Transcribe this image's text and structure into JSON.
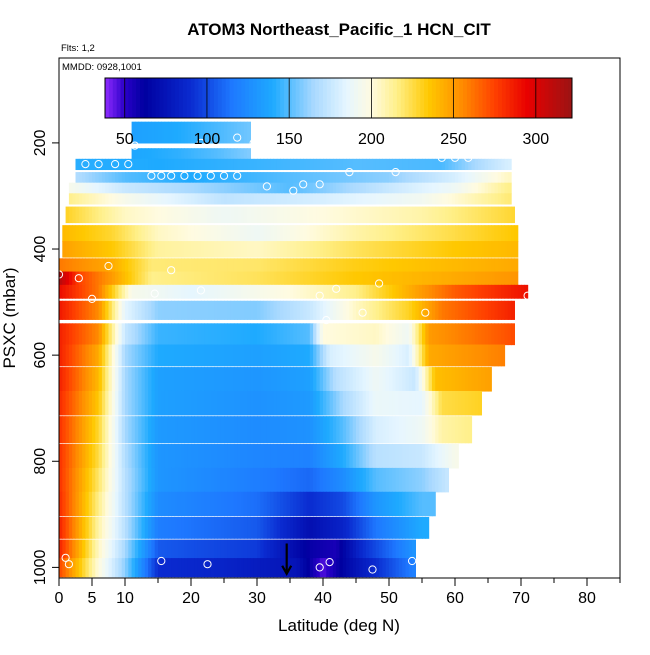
{
  "chart_data": {
    "type": "heatmap",
    "title": "ATOM3 Northeast_Pacific_1 HCN_CIT",
    "notes": [
      "Flts: 1,2",
      "MMDD: 0928,1001"
    ],
    "xlabel": "Latitude (deg N)",
    "ylabel": "PSXC (mbar)",
    "xlim": [
      0,
      85
    ],
    "ylim": [
      1020,
      40
    ],
    "y_reversed": true,
    "x_major_ticks": [
      0,
      5,
      10,
      20,
      30,
      40,
      50,
      60,
      70,
      80
    ],
    "x_minor_ticks": [
      15,
      25,
      35,
      45,
      55,
      65,
      75,
      85
    ],
    "y_ticks": [
      200,
      400,
      600,
      800,
      1000
    ],
    "colorbar": {
      "min": 38,
      "max": 322,
      "ticks": [
        50,
        100,
        150,
        200,
        250,
        300
      ],
      "stops": [
        {
          "v": 38,
          "c": "#8f2bff"
        },
        {
          "v": 50,
          "c": "#2a00c8"
        },
        {
          "v": 62,
          "c": "#0000a0"
        },
        {
          "v": 90,
          "c": "#0a2bd0"
        },
        {
          "v": 115,
          "c": "#1e78ff"
        },
        {
          "v": 140,
          "c": "#1eaaff"
        },
        {
          "v": 165,
          "c": "#a9d9ff"
        },
        {
          "v": 185,
          "c": "#e6f6ff"
        },
        {
          "v": 200,
          "c": "#fffbe0"
        },
        {
          "v": 215,
          "c": "#fff08c"
        },
        {
          "v": 235,
          "c": "#ffc800"
        },
        {
          "v": 255,
          "c": "#ff8c00"
        },
        {
          "v": 275,
          "c": "#ff4000"
        },
        {
          "v": 295,
          "c": "#e80000"
        },
        {
          "v": 322,
          "c": "#9b1414"
        }
      ]
    },
    "rows": [
      {
        "p": 180,
        "x0": 11,
        "x1": 29,
        "v": [
          [
            11,
            135
          ],
          [
            18,
            140
          ],
          [
            24,
            148
          ],
          [
            29,
            155
          ]
        ]
      },
      {
        "p": 220,
        "x0": 11,
        "x1": 29,
        "v": [
          [
            11,
            138
          ],
          [
            18,
            143
          ],
          [
            24,
            150
          ],
          [
            29,
            158
          ]
        ]
      },
      {
        "p": 240,
        "x0": 2.5,
        "x1": 68.5,
        "v": [
          [
            2.5,
            142
          ],
          [
            15,
            140
          ],
          [
            30,
            145
          ],
          [
            45,
            150
          ],
          [
            58,
            148
          ],
          [
            63,
            165
          ],
          [
            68,
            180
          ]
        ]
      },
      {
        "p": 265,
        "x0": 2.5,
        "x1": 68.5,
        "v": [
          [
            2.5,
            168
          ],
          [
            10,
            150
          ],
          [
            20,
            140
          ],
          [
            35,
            150
          ],
          [
            50,
            160
          ],
          [
            60,
            180
          ],
          [
            68,
            205
          ]
        ]
      },
      {
        "p": 285,
        "x0": 1.5,
        "x1": 68.5,
        "v": [
          [
            1.5,
            195
          ],
          [
            10,
            175
          ],
          [
            25,
            160
          ],
          [
            35,
            150
          ],
          [
            50,
            175
          ],
          [
            60,
            190
          ],
          [
            68,
            215
          ]
        ]
      },
      {
        "p": 305,
        "x0": 1.5,
        "x1": 68.5,
        "v": [
          [
            1.5,
            215
          ],
          [
            10,
            195
          ],
          [
            25,
            172
          ],
          [
            40,
            180
          ],
          [
            55,
            192
          ],
          [
            68,
            218
          ]
        ]
      },
      {
        "p": 335,
        "x0": 1.0,
        "x1": 69.0,
        "v": [
          [
            1,
            230
          ],
          [
            10,
            205
          ],
          [
            25,
            190
          ],
          [
            40,
            200
          ],
          [
            55,
            210
          ],
          [
            69,
            228
          ]
        ]
      },
      {
        "p": 370,
        "x0": 0.5,
        "x1": 69.5,
        "v": [
          [
            0.5,
            240
          ],
          [
            8,
            228
          ],
          [
            15,
            205
          ],
          [
            30,
            190
          ],
          [
            45,
            210
          ],
          [
            60,
            225
          ],
          [
            69,
            235
          ]
        ]
      },
      {
        "p": 400,
        "x0": 0.5,
        "x1": 69.5,
        "v": [
          [
            0.5,
            248
          ],
          [
            8,
            235
          ],
          [
            15,
            212
          ],
          [
            30,
            205
          ],
          [
            45,
            222
          ],
          [
            60,
            235
          ],
          [
            69,
            240
          ]
        ]
      },
      {
        "p": 430,
        "x0": 0.0,
        "x1": 69.5,
        "v": [
          [
            0,
            260
          ],
          [
            8,
            245
          ],
          [
            14,
            218
          ],
          [
            30,
            220
          ],
          [
            45,
            232
          ],
          [
            60,
            240
          ],
          [
            69,
            245
          ]
        ]
      },
      {
        "p": 455,
        "x0": -0.5,
        "x1": 69.5,
        "v": [
          [
            -0.5,
            320
          ],
          [
            3,
            275
          ],
          [
            8,
            250
          ],
          [
            14,
            215
          ],
          [
            30,
            222
          ],
          [
            45,
            235
          ],
          [
            60,
            245
          ],
          [
            69,
            252
          ]
        ]
      },
      {
        "p": 480,
        "x0": 0.0,
        "x1": 71.0,
        "v": [
          [
            0,
            292
          ],
          [
            6,
            260
          ],
          [
            11,
            195
          ],
          [
            20,
            185
          ],
          [
            35,
            200
          ],
          [
            45,
            215
          ],
          [
            52,
            240
          ],
          [
            60,
            268
          ],
          [
            71,
            290
          ]
        ]
      },
      {
        "p": 515,
        "x0": 0.0,
        "x1": 69.0,
        "v": [
          [
            0,
            288
          ],
          [
            6,
            255
          ],
          [
            10,
            185
          ],
          [
            15,
            160
          ],
          [
            30,
            158
          ],
          [
            38,
            175
          ],
          [
            45,
            205
          ],
          [
            53,
            230
          ],
          [
            58,
            260
          ],
          [
            69,
            285
          ]
        ]
      },
      {
        "p": 560,
        "x0": 0.0,
        "x1": 69.0,
        "v": [
          [
            0,
            285
          ],
          [
            6,
            255
          ],
          [
            10,
            175
          ],
          [
            15,
            145
          ],
          [
            30,
            140
          ],
          [
            38,
            150
          ],
          [
            40,
            200
          ],
          [
            48,
            205
          ],
          [
            53,
            190
          ],
          [
            56,
            250
          ],
          [
            69,
            272
          ]
        ]
      },
      {
        "p": 600,
        "x0": 0.0,
        "x1": 67.5,
        "v": [
          [
            0,
            285
          ],
          [
            6,
            245
          ],
          [
            10,
            165
          ],
          [
            15,
            140
          ],
          [
            30,
            135
          ],
          [
            38,
            140
          ],
          [
            41,
            180
          ],
          [
            48,
            195
          ],
          [
            53,
            180
          ],
          [
            56,
            245
          ],
          [
            67,
            258
          ]
        ]
      },
      {
        "p": 645,
        "x0": 0.0,
        "x1": 65.5,
        "v": [
          [
            0,
            285
          ],
          [
            6,
            240
          ],
          [
            10,
            165
          ],
          [
            15,
            135
          ],
          [
            30,
            130
          ],
          [
            38,
            135
          ],
          [
            42,
            170
          ],
          [
            48,
            190
          ],
          [
            54,
            175
          ],
          [
            57,
            238
          ],
          [
            65,
            248
          ]
        ]
      },
      {
        "p": 690,
        "x0": 0.0,
        "x1": 64.0,
        "v": [
          [
            0,
            282
          ],
          [
            6,
            235
          ],
          [
            10,
            165
          ],
          [
            15,
            135
          ],
          [
            30,
            128
          ],
          [
            38,
            132
          ],
          [
            43,
            165
          ],
          [
            48,
            188
          ],
          [
            55,
            185
          ],
          [
            58,
            225
          ],
          [
            64,
            230
          ]
        ]
      },
      {
        "p": 740,
        "x0": 0.0,
        "x1": 62.5,
        "v": [
          [
            0,
            280
          ],
          [
            6,
            228
          ],
          [
            10,
            165
          ],
          [
            15,
            132
          ],
          [
            30,
            125
          ],
          [
            38,
            128
          ],
          [
            43,
            150
          ],
          [
            48,
            180
          ],
          [
            55,
            190
          ],
          [
            58,
            210
          ],
          [
            62,
            215
          ]
        ]
      },
      {
        "p": 790,
        "x0": 0.0,
        "x1": 60.5,
        "v": [
          [
            0,
            280
          ],
          [
            6,
            225
          ],
          [
            10,
            168
          ],
          [
            15,
            130
          ],
          [
            30,
            122
          ],
          [
            38,
            120
          ],
          [
            43,
            140
          ],
          [
            48,
            170
          ],
          [
            55,
            175
          ],
          [
            60,
            195
          ]
        ]
      },
      {
        "p": 835,
        "x0": 0.0,
        "x1": 59.0,
        "v": [
          [
            0,
            280
          ],
          [
            6,
            220
          ],
          [
            10,
            170
          ],
          [
            15,
            130
          ],
          [
            30,
            118
          ],
          [
            38,
            110
          ],
          [
            43,
            125
          ],
          [
            48,
            150
          ],
          [
            55,
            160
          ],
          [
            59,
            175
          ]
        ]
      },
      {
        "p": 880,
        "x0": 0.0,
        "x1": 57.0,
        "v": [
          [
            0,
            282
          ],
          [
            6,
            215
          ],
          [
            10,
            170
          ],
          [
            15,
            125
          ],
          [
            30,
            112
          ],
          [
            38,
            90
          ],
          [
            43,
            100
          ],
          [
            48,
            130
          ],
          [
            55,
            150
          ]
        ]
      },
      {
        "p": 925,
        "x0": 0.0,
        "x1": 56.0,
        "v": [
          [
            0,
            285
          ],
          [
            6,
            210
          ],
          [
            10,
            170
          ],
          [
            15,
            118
          ],
          [
            30,
            105
          ],
          [
            38,
            72
          ],
          [
            43,
            85
          ],
          [
            48,
            115
          ],
          [
            55,
            140
          ]
        ]
      },
      {
        "p": 965,
        "x0": 0.0,
        "x1": 54.0,
        "v": [
          [
            0,
            285
          ],
          [
            6,
            205
          ],
          [
            10,
            165
          ],
          [
            15,
            105
          ],
          [
            30,
            95
          ],
          [
            38,
            60
          ],
          [
            42,
            55
          ],
          [
            46,
            90
          ],
          [
            54,
            130
          ]
        ]
      },
      {
        "p": 1000,
        "x0": -0.5,
        "x1": 54.0,
        "v": [
          [
            -0.5,
            280
          ],
          [
            6,
            200
          ],
          [
            10,
            160
          ],
          [
            15,
            90
          ],
          [
            25,
            85
          ],
          [
            36,
            75
          ],
          [
            40,
            45
          ],
          [
            44,
            70
          ],
          [
            54,
            120
          ]
        ]
      }
    ],
    "points": [
      [
        11.5,
        205
      ],
      [
        21.5,
        200
      ],
      [
        27,
        190
      ],
      [
        29.5,
        200
      ],
      [
        2.5,
        220
      ],
      [
        4,
        240
      ],
      [
        6,
        240
      ],
      [
        8.5,
        240
      ],
      [
        10.5,
        240
      ],
      [
        14,
        262
      ],
      [
        15.5,
        262
      ],
      [
        17,
        262
      ],
      [
        19,
        262
      ],
      [
        21,
        262
      ],
      [
        23,
        262
      ],
      [
        25,
        262
      ],
      [
        27,
        262
      ],
      [
        31.5,
        282
      ],
      [
        35.5,
        290
      ],
      [
        37,
        278
      ],
      [
        39.5,
        278
      ],
      [
        44,
        255
      ],
      [
        51,
        255
      ],
      [
        58,
        228
      ],
      [
        60,
        228
      ],
      [
        62,
        228
      ],
      [
        7.5,
        432
      ],
      [
        17,
        440
      ],
      [
        21.5,
        478
      ],
      [
        3,
        455
      ],
      [
        0,
        448
      ],
      [
        5,
        494
      ],
      [
        14.5,
        484
      ],
      [
        39.5,
        488
      ],
      [
        40.5,
        534
      ],
      [
        42,
        475
      ],
      [
        46,
        520
      ],
      [
        48.5,
        465
      ],
      [
        55.5,
        520
      ],
      [
        71,
        488
      ],
      [
        1,
        982
      ],
      [
        1.5,
        994
      ],
      [
        15.5,
        988
      ],
      [
        22.5,
        994
      ],
      [
        39.5,
        1000
      ],
      [
        41,
        990
      ],
      [
        47.5,
        1004
      ],
      [
        53.5,
        988
      ]
    ],
    "arrow": {
      "x": 34.5,
      "y_from": 955,
      "y_to": 1012
    }
  }
}
